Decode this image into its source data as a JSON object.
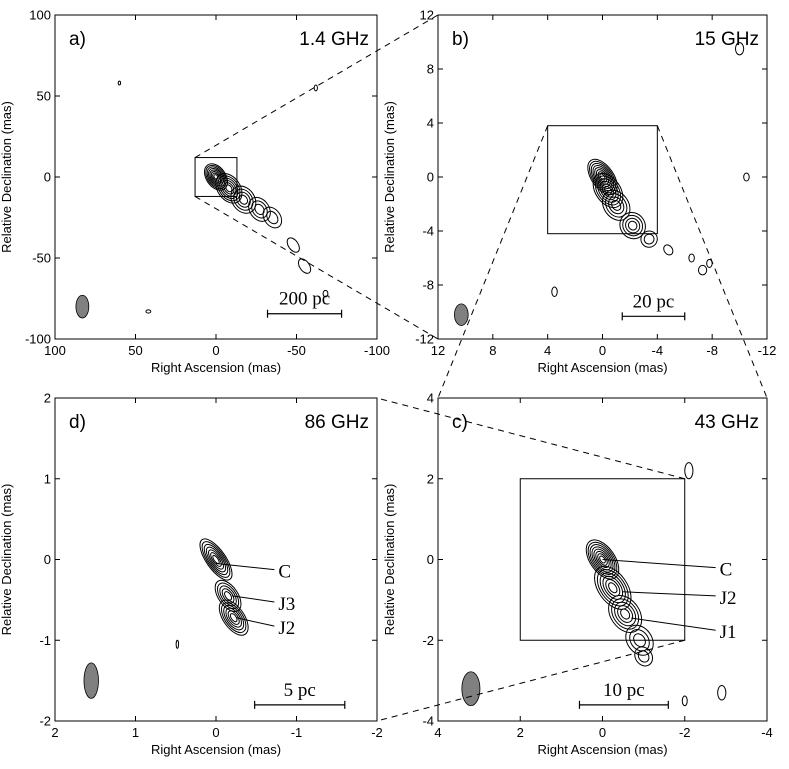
{
  "chart_data": [
    {
      "type": "contour",
      "panel": "a)",
      "frequency": "1.4 GHz",
      "xlabel": "Right Ascension (mas)",
      "ylabel": "Relative Declination (mas)",
      "xlim": [
        100,
        -100
      ],
      "ylim": [
        -100,
        100
      ],
      "xticks": [
        100,
        50,
        0,
        -50,
        -100
      ],
      "yticks": [
        100,
        50,
        0,
        -50,
        -100
      ],
      "xtick_labels": [
        "100",
        "50",
        "0",
        "-50",
        "-100"
      ],
      "ytick_labels": [
        "100",
        "50",
        "0",
        "-50",
        "-100"
      ],
      "scalebar": "200 pc",
      "zoom_box": {
        "ra": [
          13,
          -13
        ],
        "dec": [
          -12,
          12
        ]
      },
      "components": []
    },
    {
      "type": "contour",
      "panel": "b)",
      "frequency": "15 GHz",
      "xlabel": "Right Ascension (mas)",
      "ylabel": "Relative Declination (mas)",
      "xlim": [
        12,
        -12
      ],
      "ylim": [
        -12,
        12
      ],
      "xticks": [
        12,
        8,
        4,
        0,
        -4,
        -8,
        -12
      ],
      "yticks": [
        12,
        8,
        4,
        0,
        -4,
        -8,
        -12
      ],
      "xtick_labels": [
        "12",
        "8",
        "4",
        "0",
        "-4",
        "-8",
        "-12"
      ],
      "ytick_labels": [
        "12",
        "8",
        "4",
        "0",
        "-4",
        "-8",
        "-12"
      ],
      "scalebar": "20 pc",
      "zoom_box": {
        "ra": [
          4,
          -4
        ],
        "dec": [
          -4.2,
          3.8
        ]
      },
      "components": []
    },
    {
      "type": "contour",
      "panel": "c)",
      "frequency": "43 GHz",
      "xlabel": "Right Ascension (mas)",
      "ylabel": "Relative Declination (mas)",
      "xlim": [
        4,
        -4
      ],
      "ylim": [
        -4,
        4
      ],
      "xticks": [
        4,
        2,
        0,
        -2,
        -4
      ],
      "yticks": [
        4,
        2,
        0,
        -2,
        -4
      ],
      "xtick_labels": [
        "4",
        "2",
        "0",
        "-2",
        "-4"
      ],
      "ytick_labels": [
        "4",
        "2",
        "0",
        "-2",
        "-4"
      ],
      "scalebar": "10 pc",
      "zoom_box": {
        "ra": [
          2,
          -2
        ],
        "dec": [
          -2,
          2
        ]
      },
      "components": [
        "C",
        "J2",
        "J1"
      ]
    },
    {
      "type": "contour",
      "panel": "d)",
      "frequency": "86 GHz",
      "xlabel": "Right Ascension (mas)",
      "ylabel": "Relative Declination (mas)",
      "xlim": [
        2,
        -2
      ],
      "ylim": [
        -2,
        2
      ],
      "xticks": [
        2,
        1,
        0,
        -1,
        -2
      ],
      "yticks": [
        2,
        1,
        0,
        -1,
        -2
      ],
      "xtick_labels": [
        "2",
        "1",
        "0",
        "-1",
        "-2"
      ],
      "ytick_labels": [
        "2",
        "1",
        "0",
        "-1",
        "-2"
      ],
      "scalebar": "5 pc",
      "zoom_box": null,
      "components": [
        "C",
        "J3",
        "J2"
      ]
    }
  ]
}
